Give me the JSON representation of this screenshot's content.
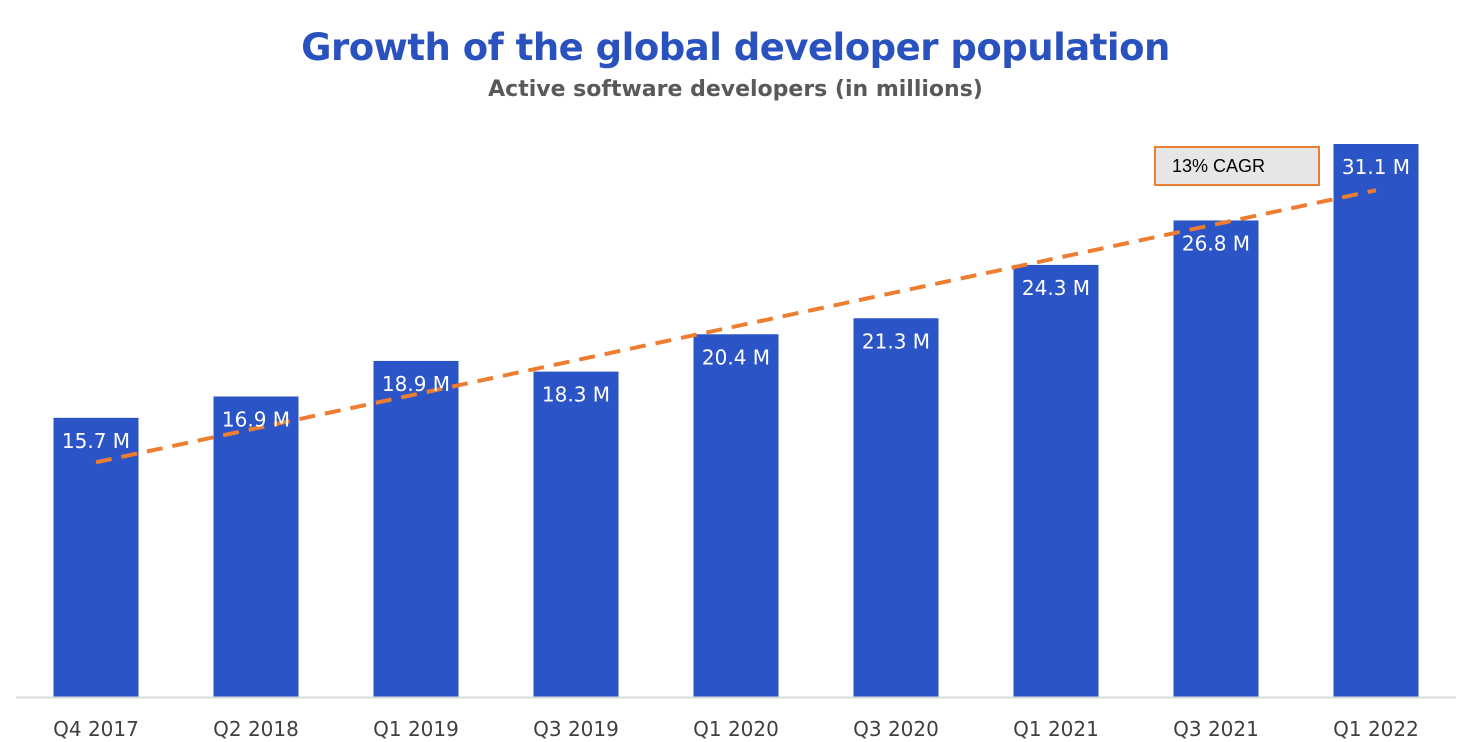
{
  "chart_data": {
    "type": "bar",
    "title": "Growth of the global developer population",
    "subtitle": "Active software developers (in millions)",
    "categories": [
      "Q4 2017",
      "Q2 2018",
      "Q1 2019",
      "Q3 2019",
      "Q1 2020",
      "Q3 2020",
      "Q1 2021",
      "Q3 2021",
      "Q1 2022"
    ],
    "series": [
      {
        "values": [
          15.7,
          16.9,
          18.9,
          18.3,
          20.4,
          21.3,
          24.3,
          26.8,
          31.1
        ]
      }
    ],
    "data_labels": [
      "15.7 M",
      "16.9 M",
      "18.9 M",
      "18.3 M",
      "20.4 M",
      "21.3 M",
      "24.3 M",
      "26.8 M",
      "31.1 M"
    ],
    "ylim": [
      0,
      31.1
    ],
    "grid": false,
    "trendline": {
      "style": "dashed",
      "label": "13% CAGR",
      "start_value": 13.2,
      "end_value": 28.5
    },
    "colors": {
      "bar": "#2b55c7",
      "trend": "#ed7d31",
      "title": "#2a52be",
      "subtitle": "#595959",
      "axis": "#d9d9d9"
    }
  }
}
